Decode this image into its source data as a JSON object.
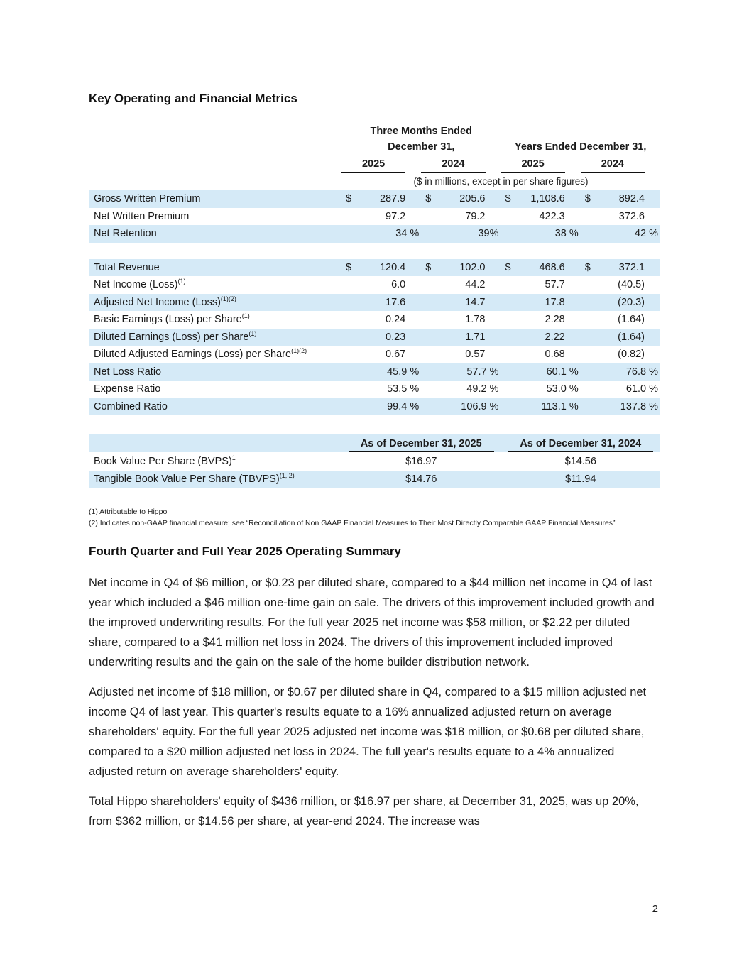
{
  "page": {
    "number": "2"
  },
  "section1_title": "Key Operating and Financial Metrics",
  "metrics_table": {
    "header": {
      "three_months_l1": "Three Months Ended",
      "three_months_l2": "December 31,",
      "years_ended": "Years Ended December 31,",
      "years": [
        "2025",
        "2024",
        "2025",
        "2024"
      ],
      "units_note": "($ in millions, except in per share figures)"
    },
    "rows": [
      {
        "label": "Gross Written Premium",
        "sup": "",
        "currency": "$",
        "pct": false,
        "shaded": true,
        "values": [
          "287.9",
          "205.6",
          "1,108.6",
          "892.4"
        ]
      },
      {
        "label": "Net Written Premium",
        "sup": "",
        "currency": "",
        "pct": false,
        "shaded": false,
        "values": [
          "97.2",
          "79.2",
          "422.3",
          "372.6"
        ]
      },
      {
        "label": "Net Retention",
        "sup": "",
        "currency": "",
        "pct": true,
        "shaded": true,
        "values": [
          "34 %",
          "39%",
          "38 %",
          "42 %"
        ]
      },
      {
        "spacer": true
      },
      {
        "label": "Total Revenue",
        "sup": "",
        "currency": "$",
        "pct": false,
        "shaded": true,
        "values": [
          "120.4",
          "102.0",
          "468.6",
          "372.1"
        ]
      },
      {
        "label": "Net Income (Loss)",
        "sup": "(1)",
        "currency": "",
        "pct": false,
        "shaded": false,
        "values": [
          "6.0",
          "44.2",
          "57.7",
          "(40.5)"
        ]
      },
      {
        "label": "Adjusted Net Income (Loss)",
        "sup": "(1)(2)",
        "currency": "",
        "pct": false,
        "shaded": true,
        "values": [
          "17.6",
          "14.7",
          "17.8",
          "(20.3)"
        ]
      },
      {
        "label": "Basic Earnings (Loss) per Share",
        "sup": "(1)",
        "currency": "",
        "pct": false,
        "shaded": false,
        "values": [
          "0.24",
          "1.78",
          "2.28",
          "(1.64)"
        ]
      },
      {
        "label": "Diluted Earnings (Loss) per Share",
        "sup": "(1)",
        "currency": "",
        "pct": false,
        "shaded": true,
        "values": [
          "0.23",
          "1.71",
          "2.22",
          "(1.64)"
        ]
      },
      {
        "label": "Diluted Adjusted Earnings (Loss) per Share",
        "sup": "(1)(2)",
        "currency": "",
        "pct": false,
        "shaded": false,
        "values": [
          "0.67",
          "0.57",
          "0.68",
          "(0.82)"
        ]
      },
      {
        "label": "Net Loss Ratio",
        "sup": "",
        "currency": "",
        "pct": true,
        "shaded": true,
        "values": [
          "45.9 %",
          "57.7 %",
          "60.1 %",
          "76.8 %"
        ]
      },
      {
        "label": "Expense Ratio",
        "sup": "",
        "currency": "",
        "pct": true,
        "shaded": false,
        "values": [
          "53.5 %",
          "49.2 %",
          "53.0 %",
          "61.0 %"
        ]
      },
      {
        "label": "Combined Ratio",
        "sup": "",
        "currency": "",
        "pct": true,
        "shaded": true,
        "values": [
          "99.4 %",
          "106.9 %",
          "113.1 %",
          "137.8 %"
        ]
      }
    ]
  },
  "bvps_table": {
    "headers": [
      "As of December 31, 2025",
      "As of December 31, 2024"
    ],
    "rows": [
      {
        "label": "Book Value Per Share (BVPS)",
        "sup": "1",
        "shaded": false,
        "values": [
          "$16.97",
          "$14.56"
        ]
      },
      {
        "label": "Tangible Book Value Per Share (TBVPS)",
        "sup": "(1, 2)",
        "shaded": true,
        "values": [
          "$14.76",
          "$11.94"
        ]
      }
    ]
  },
  "footnotes": [
    "(1) Attributable to Hippo",
    "(2) Indicates non-GAAP financial measure; see “Reconciliation of Non GAAP Financial Measures to Their Most Directly Comparable GAAP Financial Measures”"
  ],
  "section2_title": "Fourth Quarter and Full Year 2025 Operating Summary",
  "paragraphs": [
    "Net income in Q4 of $6 million, or $0.23 per diluted share, compared to a $44 million net income in Q4 of last year which included a $46 million one-time gain on sale. The drivers of this improvement included growth and the improved underwriting results.  For the full year 2025 net income was $58 million, or $2.22 per diluted share, compared to a $41 million net loss in 2024.  The drivers of this improvement included improved underwriting results and the gain on the sale of the home builder distribution network.",
    "Adjusted net income of $18 million, or $0.67 per diluted share in Q4, compared to a $15 million adjusted net income Q4 of last year. This quarter's results equate to a 16% annualized adjusted return on average shareholders' equity. For the full year 2025 adjusted net income was $18 million, or $0.68 per diluted share, compared to a $20 million adjusted net loss in 2024. The full year's results equate to a 4% annualized adjusted return on average shareholders' equity.",
    "Total Hippo shareholders' equity of $436 million, or $16.97 per share, at December 31, 2025, was up 20%, from $362 million, or $14.56 per share, at year-end 2024. The increase was"
  ]
}
